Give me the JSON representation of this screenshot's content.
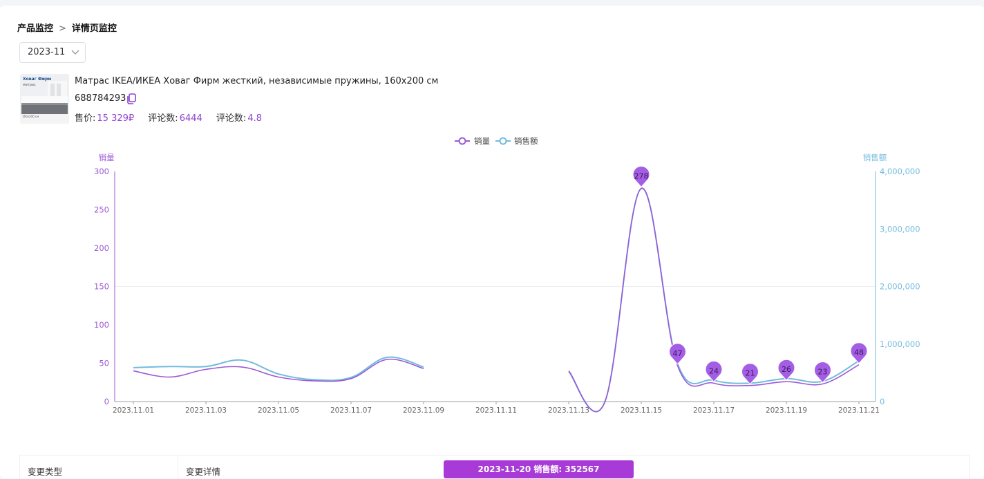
{
  "breadcrumb": {
    "parent": "产品监控",
    "separator": ">",
    "current": "详情页监控"
  },
  "month_select": {
    "value": "2023-11"
  },
  "product": {
    "title": "Матрас IKEA/ИКЕА Ховаг Фирм жесткий, независимые пружины, 160x200 см",
    "id": "688784293",
    "price_label": "售价:",
    "price_value": "15 329₽",
    "reviews_label": "评论数:",
    "reviews_value": "6444",
    "rating_label": "评论数:",
    "rating_value": "4.8",
    "thumbnail": {
      "title": "Ховаг Фирм",
      "subtitle": "матрас",
      "size": "160x200 см"
    }
  },
  "table": {
    "col1": "变更类型",
    "col2": "变更详情"
  },
  "tooltip": {
    "text": "2023-11-20  销售额:  352567"
  },
  "colors": {
    "sales_qty": "#9b59d6",
    "sales_amount": "#73bbde",
    "marker": "#a45ee6"
  },
  "chart_data": {
    "type": "line",
    "legend": [
      "销量",
      "销售额"
    ],
    "legend_position": "top-center",
    "y_left_label": "销量",
    "y_right_label": "销售额",
    "y_left_ticks": [
      "0",
      "50",
      "100",
      "150",
      "200",
      "250",
      "300"
    ],
    "y_right_ticks": [
      "0",
      "1,000,000",
      "2,000,000",
      "3,000,000",
      "4,000,000"
    ],
    "ylim_left": [
      0,
      300
    ],
    "ylim_right": [
      0,
      4000000
    ],
    "x_tick_labels": [
      "2023.11.01",
      "2023.11.03",
      "2023.11.05",
      "2023.11.07",
      "2023.11.09",
      "2023.11.11",
      "2023.11.13",
      "2023.11.15",
      "2023.11.17",
      "2023.11.19",
      "2023.11.21"
    ],
    "grid": "horizontal line at 150 only",
    "x": [
      "2023.11.01",
      "2023.11.02",
      "2023.11.03",
      "2023.11.04",
      "2023.11.05",
      "2023.11.06",
      "2023.11.07",
      "2023.11.08",
      "2023.11.09",
      "2023.11.10",
      "2023.11.11",
      "2023.11.12",
      "2023.11.13",
      "2023.11.14",
      "2023.11.15",
      "2023.11.16",
      "2023.11.17",
      "2023.11.18",
      "2023.11.19",
      "2023.11.20",
      "2023.11.21"
    ],
    "series": [
      {
        "name": "销量",
        "axis": "left",
        "values": [
          40,
          32,
          42,
          45,
          32,
          27,
          30,
          55,
          43,
          null,
          null,
          null,
          40,
          0,
          278,
          47,
          24,
          21,
          26,
          23,
          48
        ]
      },
      {
        "name": "销售额",
        "axis": "right",
        "values": [
          590000,
          610000,
          610000,
          720000,
          480000,
          380000,
          420000,
          770000,
          600000,
          null,
          null,
          null,
          520000,
          0,
          3700000,
          660000,
          370000,
          320000,
          400000,
          352567,
          710000
        ]
      }
    ],
    "markers": [
      {
        "x": "2023.11.15",
        "label": "278"
      },
      {
        "x": "2023.11.16",
        "label": "47"
      },
      {
        "x": "2023.11.17",
        "label": "24"
      },
      {
        "x": "2023.11.18",
        "label": "21"
      },
      {
        "x": "2023.11.19",
        "label": "26"
      },
      {
        "x": "2023.11.20",
        "label": "23"
      },
      {
        "x": "2023.11.21",
        "label": "48"
      }
    ]
  }
}
